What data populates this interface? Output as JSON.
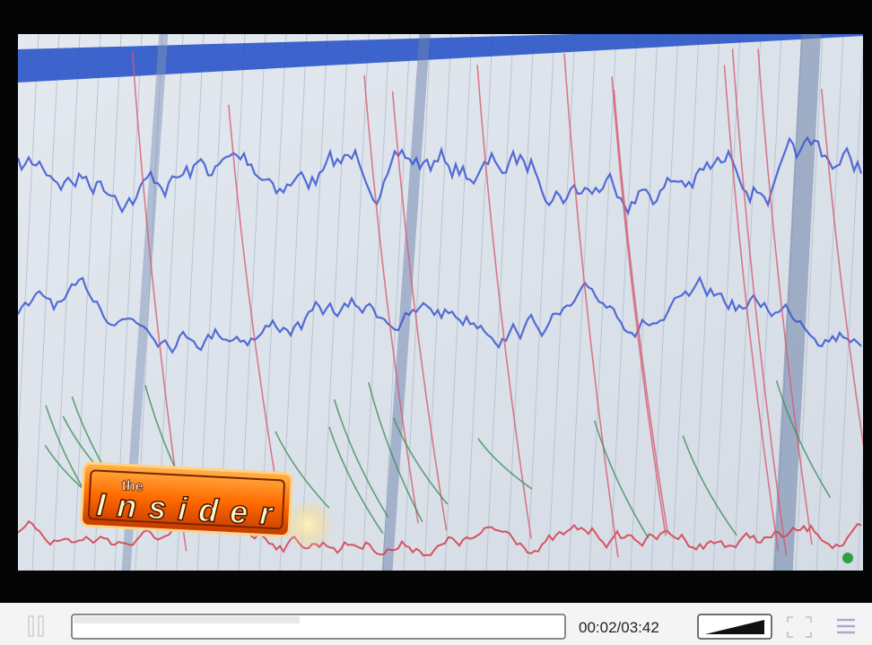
{
  "video": {
    "logo": {
      "small": "the",
      "large": "Insider"
    }
  },
  "controls": {
    "time": "00:02/03:42"
  }
}
